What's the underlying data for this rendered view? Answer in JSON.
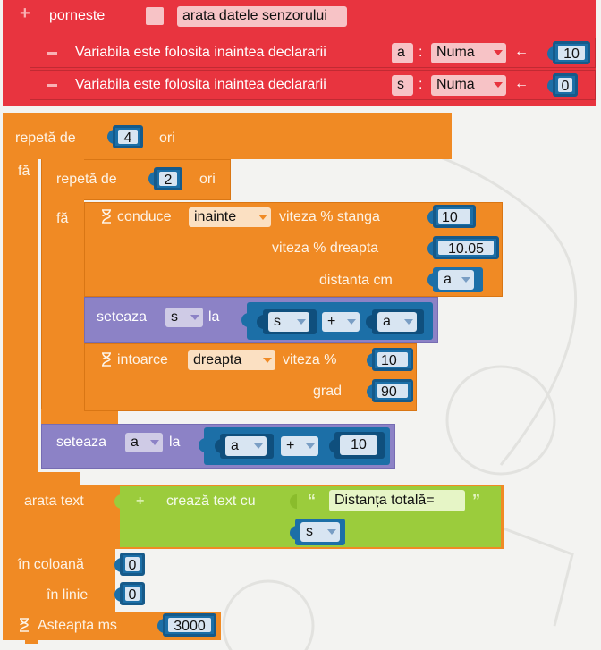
{
  "start_block": {
    "label": "porneste",
    "text_field": "arata datele senzorului",
    "var_decls": [
      {
        "label": "Variabila este folosita inaintea declararii",
        "var": "a",
        "type": "Numa",
        "arrow": "←",
        "value": "10"
      },
      {
        "label": "Variabila este folosita inaintea declararii",
        "var": "s",
        "type": "Numa",
        "arrow": "←",
        "value": "0"
      }
    ]
  },
  "outer_loop": {
    "repeat": "repetă de",
    "times": "4",
    "ori": "ori",
    "do": "fă"
  },
  "inner_loop": {
    "repeat": "repetă de",
    "times": "2",
    "ori": "ori",
    "do": "fă"
  },
  "drive": {
    "label": "conduce",
    "direction": "inainte",
    "speed_left_label": "viteza %  stanga",
    "speed_left": "10",
    "speed_right_label": "viteza %  dreapta",
    "speed_right": "10.05",
    "distance_label": "distanta cm",
    "distance_var": "a"
  },
  "set_s": {
    "label": "seteaza",
    "var": "s",
    "la": "la",
    "left": "s",
    "op": "+",
    "right": "a"
  },
  "turn": {
    "label": "intoarce",
    "direction": "dreapta",
    "speed_label": "viteza %",
    "speed": "10",
    "deg_label": "grad",
    "deg": "90"
  },
  "set_a": {
    "label": "seteaza",
    "var": "a",
    "la": "la",
    "left": "a",
    "op": "+",
    "right": "10"
  },
  "show_text": {
    "label": "arata text",
    "create_label": "crează text cu",
    "quote_open": "“",
    "quote_close": "”",
    "text": "Distanța totală=",
    "var": "s",
    "col_label": "în coloană",
    "col": "0",
    "row_label": "în linie",
    "row": "0"
  },
  "wait": {
    "label": "Asteapta ms",
    "ms": "3000"
  },
  "colors": {
    "red": "#e8343f",
    "orange": "#f08a24",
    "purple": "#8c82c6",
    "green": "#9bcc3c",
    "blue": "#1c6fa7"
  }
}
